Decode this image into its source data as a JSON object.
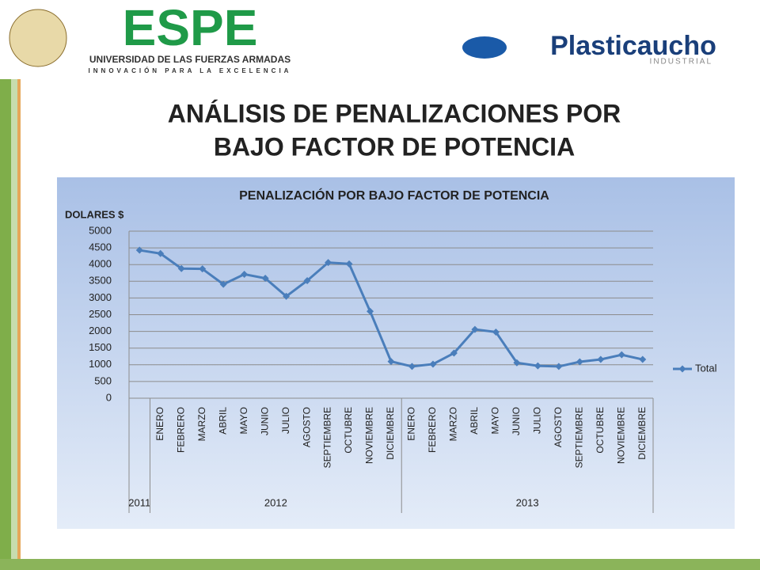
{
  "header": {
    "logo_left": "ESPE",
    "logo_left_subtitle": "UNIVERSIDAD DE LAS FUERZAS ARMADAS",
    "logo_left_motto": "INNOVACIÓN PARA LA EXCELENCIA",
    "logo_right": "Plasticaucho",
    "logo_right_subtitle": "INDUSTRIAL"
  },
  "slide_title": [
    "ANÁLISIS DE PENALIZACIONES POR",
    "BAJO FACTOR DE POTENCIA"
  ],
  "chart_data": {
    "type": "line",
    "title": "PENALIZACIÓN POR BAJO FACTOR DE POTENCIA",
    "y_label": "DOLARES $",
    "categories": [
      null,
      "ENERO",
      "FEBRERO",
      "MARZO",
      "ABRIL",
      "MAYO",
      "JUNIO",
      "JULIO",
      "AGOSTO",
      "SEPTIEMBRE",
      "OCTUBRE",
      "NOVIEMBRE",
      "DICIEMBRE",
      "ENERO",
      "FEBRERO",
      "MARZO",
      "ABRIL",
      "MAYO",
      "JUNIO",
      "JULIO",
      "AGOSTO",
      "SEPTIEMBRE",
      "OCTUBRE",
      "NOVIEMBRE",
      "DICIEMBRE"
    ],
    "groups": [
      {
        "label": "2011",
        "span": 1
      },
      {
        "label": "2012",
        "span": 12
      },
      {
        "label": "2013",
        "span": 12
      }
    ],
    "series": [
      {
        "name": "Total",
        "color": "#4a7ebb",
        "values": [
          4430,
          4330,
          3880,
          3870,
          3410,
          3710,
          3590,
          3050,
          3520,
          4060,
          4020,
          2600,
          1100,
          950,
          1020,
          1350,
          2060,
          1980,
          1060,
          970,
          950,
          1090,
          1160,
          1300,
          1160
        ]
      }
    ],
    "ylim": [
      0,
      5000
    ],
    "yticks": [
      0,
      500,
      1000,
      1500,
      2000,
      2500,
      3000,
      3500,
      4000,
      4500,
      5000
    ],
    "grid": true,
    "legend": "right"
  }
}
